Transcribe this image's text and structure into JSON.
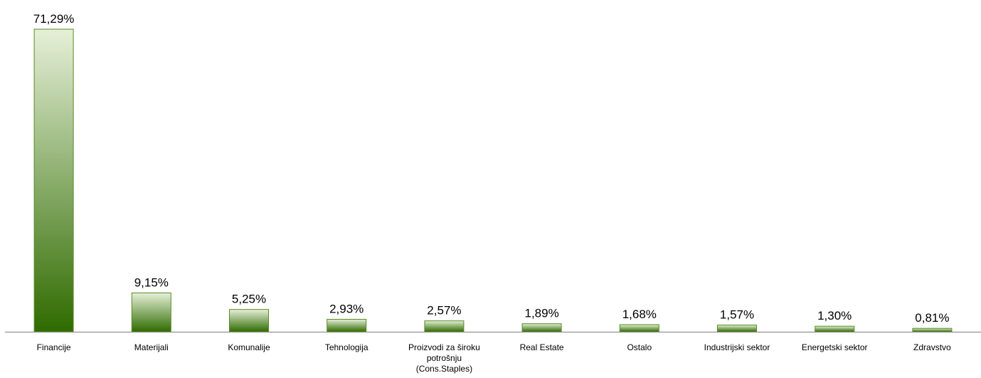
{
  "chart_data": {
    "type": "bar",
    "title": "",
    "xlabel": "",
    "ylabel": "",
    "ylim": [
      0,
      71.29
    ],
    "grid": false,
    "legend": "none",
    "categories": [
      "Financije",
      "Materijali",
      "Komunalije",
      "Tehnologija",
      [
        "Proizvodi za široku",
        "potrošnju",
        "(Cons.Staples)"
      ],
      "Real Estate",
      "Ostalo",
      "Industrijski sektor",
      "Energetski sektor",
      "Zdravstvo"
    ],
    "values": [
      71.29,
      9.15,
      5.25,
      2.93,
      2.57,
      1.89,
      1.68,
      1.57,
      1.3,
      0.81
    ],
    "value_labels": [
      "71,29%",
      "9,15%",
      "5,25%",
      "2,93%",
      "2,57%",
      "1,89%",
      "1,68%",
      "1,57%",
      "1,30%",
      "0,81%"
    ],
    "colors": {
      "bar_top": "#e6f0d8",
      "bar_bottom": "#2f6b00",
      "bar_stroke": "#5a8a26",
      "axis": "#7f7f7f"
    }
  }
}
